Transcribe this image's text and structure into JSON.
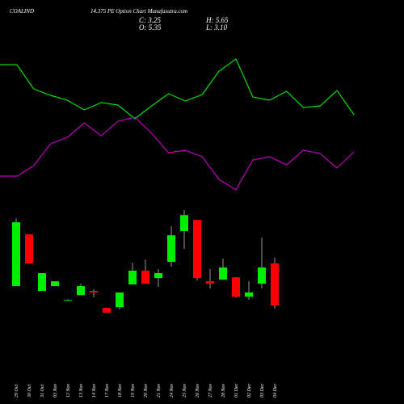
{
  "header": {
    "symbol": "COALIND",
    "title": "14.375 PE Option Chart Munafasutra.com",
    "close": "C: 3.25",
    "high": "H: 5.65",
    "open": "O: 5.35",
    "low": "L: 3.10"
  },
  "chart_data": [
    {
      "type": "line",
      "series": [
        {
          "color": "#00e000",
          "values": [
            90,
            90,
            75,
            71,
            68,
            62,
            66.5,
            65,
            56.5,
            64.5,
            72,
            67.5,
            71.5,
            86,
            93.5,
            70,
            68,
            73.5,
            63.5,
            64.5,
            74,
            59
          ]
        },
        {
          "color": "#c000c0",
          "values": [
            21,
            21,
            27.5,
            41,
            45,
            54,
            46,
            55,
            57.5,
            47.5,
            35.5,
            37,
            33,
            19,
            12.5,
            31,
            33,
            28,
            37,
            35,
            26,
            36
          ]
        }
      ]
    },
    {
      "type": "candlestick",
      "categories": [
        "29 Oct",
        "30 Oct",
        "31 Oct",
        "03 Nov",
        "12 Nov",
        "13 Nov",
        "14 Nov",
        "17 Nov",
        "18 Nov",
        "19 Nov",
        "20 Nov",
        "21 Nov",
        "24 Nov",
        "25 Nov",
        "26 Nov",
        "27 Nov",
        "28 Nov",
        "01 Dec",
        "02 Dec",
        "03 Dec",
        "04 Dec"
      ],
      "open": [
        4.22,
        6.8,
        3.98,
        4.22,
        3.53,
        3.77,
        3.98,
        3.13,
        3.17,
        4.3,
        4.99,
        4.62,
        5.43,
        6.97,
        7.53,
        4.46,
        4.54,
        4.66,
        3.69,
        4.34,
        5.35
      ],
      "high": [
        7.61,
        6.8,
        4.87,
        4.46,
        3.57,
        4.34,
        4.06,
        3.13,
        3.9,
        5.39,
        5.55,
        5.07,
        7.21,
        8.02,
        7.53,
        5.07,
        5.59,
        4.66,
        4.46,
        6.64,
        5.65
      ],
      "low": [
        4.22,
        5.35,
        3.98,
        4.22,
        3.53,
        3.77,
        3.65,
        2.89,
        3.05,
        4.3,
        4.34,
        4.18,
        5.19,
        6.08,
        4.5,
        4.1,
        4.54,
        3.65,
        3.53,
        4.1,
        3.1
      ],
      "close": [
        7.41,
        5.35,
        4.87,
        4.46,
        3.53,
        4.22,
        3.9,
        2.89,
        3.9,
        4.99,
        4.34,
        4.87,
        6.76,
        7.77,
        4.62,
        4.34,
        5.15,
        3.69,
        3.9,
        5.15,
        3.25
      ],
      "up_color": "#00ee00",
      "down_color": "#ff0000"
    }
  ]
}
